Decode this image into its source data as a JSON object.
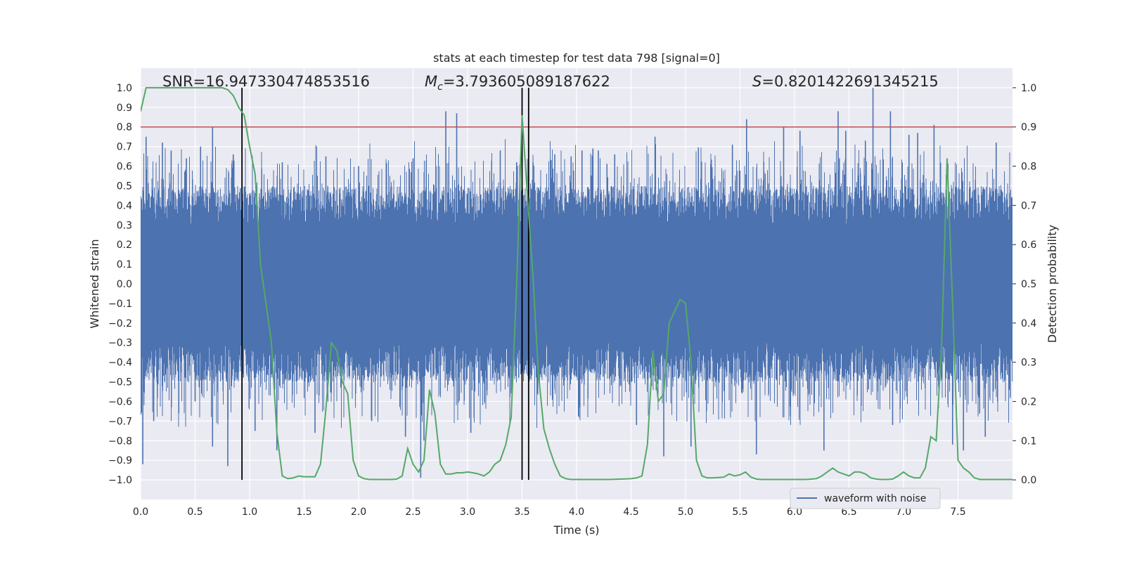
{
  "chart_data": {
    "type": "line",
    "title": "stats at each timestep for test data 798 [signal=0]",
    "xlabel": "Time (s)",
    "ylabel_left": "Whitened strain",
    "ylabel_right": "Detection probability",
    "xlim": [
      0.0,
      8.0
    ],
    "ylim_left": [
      -1.1,
      1.1
    ],
    "ylim_right": [
      -0.05,
      1.05
    ],
    "x_ticks": [
      "0.0",
      "0.5",
      "1.0",
      "1.5",
      "2.0",
      "2.5",
      "3.0",
      "3.5",
      "4.0",
      "4.5",
      "5.0",
      "5.5",
      "6.0",
      "6.5",
      "7.0",
      "7.5"
    ],
    "y_ticks_left": [
      "1.0",
      "0.9",
      "0.8",
      "0.7",
      "0.6",
      "0.5",
      "0.4",
      "0.3",
      "0.2",
      "0.1",
      "0.0",
      "−0.1",
      "−0.2",
      "−0.3",
      "−0.4",
      "−0.5",
      "−0.6",
      "−0.7",
      "−0.8",
      "−0.9",
      "−1.0"
    ],
    "y_ticks_right": [
      "1.0",
      "0.9",
      "0.8",
      "0.7",
      "0.6",
      "0.5",
      "0.4",
      "0.3",
      "0.2",
      "0.1",
      "0.0"
    ],
    "grid": true,
    "legend": {
      "position": "lower-right",
      "entries": [
        "waveform with noise"
      ]
    },
    "annotations": {
      "snr": "SNR=16.947330474853516",
      "mc_symbol": "M",
      "mc_sub": "c",
      "mc_value": "=3.793605089187622",
      "s_symbol": "S",
      "s_value": "=0.8201422691345215"
    },
    "threshold_line": {
      "y": 0.8,
      "color": "#c44e52"
    },
    "vertical_lines_x": [
      0.93,
      3.5,
      3.56
    ],
    "waveform": {
      "name": "waveform with noise",
      "color": "#4c72b0",
      "duration": 8.0,
      "core_amplitude": 0.3,
      "peaks": [
        [
          0.02,
          -0.92
        ],
        [
          0.05,
          0.75
        ],
        [
          0.12,
          -0.7
        ],
        [
          0.2,
          0.72
        ],
        [
          0.28,
          0.68
        ],
        [
          0.35,
          -0.66
        ],
        [
          0.42,
          0.64
        ],
        [
          0.5,
          -0.6
        ],
        [
          0.55,
          0.7
        ],
        [
          0.66,
          -0.83
        ],
        [
          0.66,
          0.8
        ],
        [
          0.8,
          -0.93
        ],
        [
          0.85,
          0.66
        ],
        [
          1.05,
          -0.75
        ],
        [
          1.25,
          -0.85
        ],
        [
          1.3,
          0.62
        ],
        [
          1.6,
          -0.76
        ],
        [
          1.7,
          0.65
        ],
        [
          2.0,
          0.6
        ],
        [
          2.12,
          -0.7
        ],
        [
          2.43,
          -0.78
        ],
        [
          2.5,
          0.64
        ],
        [
          2.57,
          -0.99
        ],
        [
          2.6,
          -0.8
        ],
        [
          2.8,
          0.88
        ],
        [
          2.9,
          0.87
        ],
        [
          3.03,
          -0.76
        ],
        [
          3.3,
          0.68
        ],
        [
          3.45,
          0.62
        ],
        [
          3.6,
          0.62
        ],
        [
          3.8,
          0.66
        ],
        [
          3.95,
          0.65
        ],
        [
          4.05,
          0.68
        ],
        [
          4.15,
          0.69
        ],
        [
          4.2,
          0.68
        ],
        [
          4.35,
          0.66
        ],
        [
          4.55,
          -0.72
        ],
        [
          4.72,
          0.75
        ],
        [
          4.8,
          -0.88
        ],
        [
          5.05,
          -0.83
        ],
        [
          5.43,
          0.71
        ],
        [
          5.56,
          0.84
        ],
        [
          5.65,
          -0.87
        ],
        [
          5.9,
          0.8
        ],
        [
          6.05,
          0.78
        ],
        [
          6.27,
          -0.85
        ],
        [
          6.4,
          0.88
        ],
        [
          6.47,
          0.78
        ],
        [
          6.65,
          0.73
        ],
        [
          6.72,
          1.0
        ],
        [
          6.88,
          0.88
        ],
        [
          6.9,
          -0.72
        ],
        [
          7.05,
          0.76
        ],
        [
          7.13,
          0.77
        ],
        [
          7.28,
          0.81
        ],
        [
          7.45,
          -0.82
        ],
        [
          7.55,
          -0.85
        ],
        [
          7.75,
          -0.78
        ],
        [
          7.85,
          0.72
        ]
      ]
    },
    "probability": {
      "color": "#55a868",
      "x": [
        0.0,
        0.05,
        0.1,
        0.2,
        0.3,
        0.4,
        0.5,
        0.6,
        0.7,
        0.75,
        0.8,
        0.85,
        0.9,
        0.95,
        1.0,
        1.05,
        1.1,
        1.15,
        1.2,
        1.25,
        1.3,
        1.35,
        1.4,
        1.45,
        1.5,
        1.55,
        1.6,
        1.65,
        1.7,
        1.75,
        1.8,
        1.85,
        1.9,
        1.95,
        2.0,
        2.05,
        2.1,
        2.2,
        2.3,
        2.35,
        2.4,
        2.45,
        2.5,
        2.55,
        2.6,
        2.65,
        2.7,
        2.75,
        2.8,
        2.85,
        2.9,
        2.95,
        3.0,
        3.05,
        3.1,
        3.15,
        3.2,
        3.25,
        3.3,
        3.35,
        3.4,
        3.45,
        3.5,
        3.55,
        3.6,
        3.65,
        3.7,
        3.75,
        3.8,
        3.85,
        3.9,
        3.95,
        4.0,
        4.1,
        4.2,
        4.3,
        4.4,
        4.5,
        4.55,
        4.6,
        4.65,
        4.7,
        4.75,
        4.8,
        4.85,
        4.9,
        4.95,
        5.0,
        5.05,
        5.1,
        5.15,
        5.2,
        5.25,
        5.3,
        5.35,
        5.4,
        5.45,
        5.5,
        5.55,
        5.6,
        5.65,
        5.7,
        5.8,
        6.0,
        6.1,
        6.15,
        6.2,
        6.25,
        6.3,
        6.35,
        6.4,
        6.45,
        6.5,
        6.55,
        6.6,
        6.65,
        6.7,
        6.75,
        6.8,
        6.85,
        6.9,
        6.95,
        7.0,
        7.05,
        7.1,
        7.15,
        7.2,
        7.25,
        7.3,
        7.35,
        7.4,
        7.45,
        7.5,
        7.55,
        7.6,
        7.65,
        7.7,
        7.75,
        7.8,
        7.9,
        8.0
      ],
      "y": [
        0.94,
        1.0,
        1.0,
        1.0,
        1.0,
        1.0,
        1.0,
        1.0,
        1.0,
        1.0,
        0.995,
        0.98,
        0.95,
        0.93,
        0.85,
        0.78,
        0.55,
        0.45,
        0.35,
        0.12,
        0.01,
        0.003,
        0.005,
        0.01,
        0.008,
        0.008,
        0.008,
        0.04,
        0.18,
        0.35,
        0.33,
        0.25,
        0.22,
        0.05,
        0.01,
        0.003,
        0.001,
        0.001,
        0.001,
        0.002,
        0.01,
        0.08,
        0.04,
        0.02,
        0.05,
        0.23,
        0.17,
        0.04,
        0.015,
        0.015,
        0.018,
        0.018,
        0.02,
        0.018,
        0.015,
        0.01,
        0.02,
        0.04,
        0.05,
        0.09,
        0.16,
        0.5,
        0.93,
        0.72,
        0.52,
        0.27,
        0.13,
        0.08,
        0.04,
        0.01,
        0.003,
        0.001,
        0.001,
        0.001,
        0.001,
        0.001,
        0.002,
        0.003,
        0.005,
        0.01,
        0.09,
        0.33,
        0.2,
        0.22,
        0.4,
        0.43,
        0.46,
        0.45,
        0.3,
        0.05,
        0.01,
        0.005,
        0.005,
        0.006,
        0.007,
        0.015,
        0.01,
        0.013,
        0.02,
        0.007,
        0.002,
        0.001,
        0.001,
        0.001,
        0.001,
        0.002,
        0.003,
        0.01,
        0.02,
        0.03,
        0.02,
        0.015,
        0.01,
        0.02,
        0.02,
        0.015,
        0.005,
        0.002,
        0.001,
        0.001,
        0.002,
        0.01,
        0.02,
        0.01,
        0.005,
        0.005,
        0.03,
        0.11,
        0.1,
        0.35,
        0.82,
        0.45,
        0.05,
        0.03,
        0.02,
        0.005,
        0.001,
        0.001,
        0.001,
        0.001,
        0.001
      ]
    }
  }
}
